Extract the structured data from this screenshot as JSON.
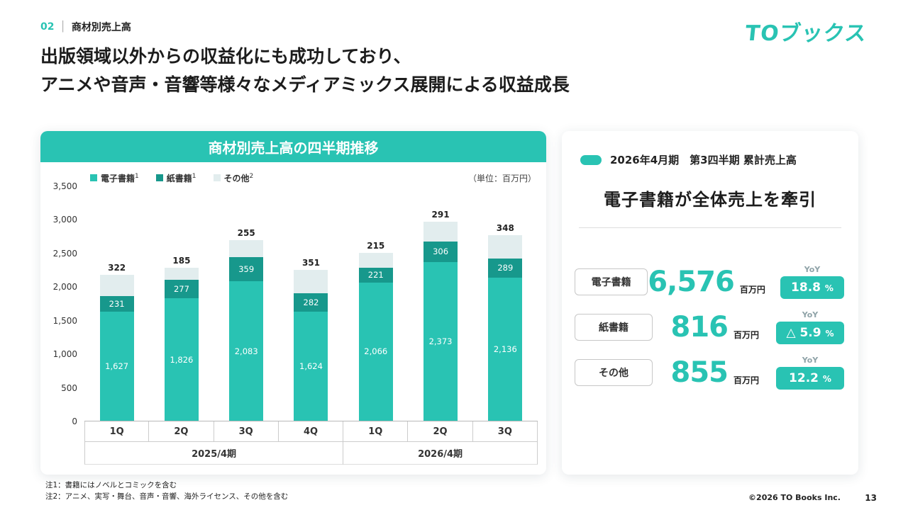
{
  "theme": {
    "accent": "#29c3b3",
    "accent_dark": "#17988c",
    "pale": "#e2edee"
  },
  "page": {
    "section_number": "02",
    "section_separator": "│",
    "section_title": "商材別売上高",
    "logo": "TOブックス",
    "headline_line1": "出版領域以外からの収益化にも成功しており、",
    "headline_line2": "アニメや音声・音響等様々なメディアミックス展開による収益成長",
    "footnote1": "注1：書籍にはノベルとコミックを含む",
    "footnote2": "注2：アニメ、実写・舞台、音声・音響、海外ライセンス、その他を含む",
    "copyright": "©2026  TO Books Inc.",
    "page_number": "13"
  },
  "chart_data": {
    "type": "bar",
    "stacked": true,
    "title": "商材別売上高の四半期推移",
    "unit_label": "（単位：百万円）",
    "ylim": [
      0,
      3500
    ],
    "yticks": [
      "3,500",
      "3,000",
      "2,500",
      "2,000",
      "1,500",
      "1,000",
      "500",
      "0"
    ],
    "categories": [
      "1Q",
      "2Q",
      "3Q",
      "4Q",
      "1Q",
      "2Q",
      "3Q"
    ],
    "groups": [
      {
        "label": "2025/4期",
        "span": 4
      },
      {
        "label": "2026/4期",
        "span": 3
      }
    ],
    "series": [
      {
        "name": "電子書籍",
        "note": "1",
        "color": "#29c3b3",
        "values": [
          1627,
          1826,
          2083,
          1624,
          2066,
          2373,
          2136
        ]
      },
      {
        "name": "紙書籍",
        "note": "1",
        "color": "#17988c",
        "values": [
          231,
          277,
          359,
          282,
          221,
          306,
          289
        ]
      },
      {
        "name": "その他",
        "note": "2",
        "color": "#e2edee",
        "values": [
          322,
          185,
          255,
          351,
          215,
          291,
          348
        ]
      }
    ],
    "grid": false,
    "legend_position": "top"
  },
  "summary": {
    "badge_label": "2026年4月期　第3四半期 累計売上高",
    "title": "電子書籍が全体売上を牽引",
    "rows": [
      {
        "label": "電子書籍",
        "value": "6,576",
        "unit": "百万円",
        "yoy_label": "YoY",
        "yoy_value": "18.8",
        "yoy_unit": "%"
      },
      {
        "label": "紙書籍",
        "value": "816",
        "unit": "百万円",
        "yoy_label": "YoY",
        "yoy_value": "△ 5.9",
        "yoy_unit": "%"
      },
      {
        "label": "その他",
        "value": "855",
        "unit": "百万円",
        "yoy_label": "YoY",
        "yoy_value": "12.2",
        "yoy_unit": "%"
      }
    ]
  }
}
